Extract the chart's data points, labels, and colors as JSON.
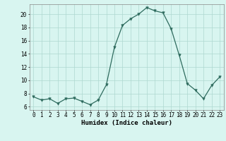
{
  "x": [
    0,
    1,
    2,
    3,
    4,
    5,
    6,
    7,
    8,
    9,
    10,
    11,
    12,
    13,
    14,
    15,
    16,
    17,
    18,
    19,
    20,
    21,
    22,
    23
  ],
  "y": [
    7.5,
    7.0,
    7.2,
    6.5,
    7.2,
    7.3,
    6.8,
    6.3,
    7.0,
    9.3,
    15.0,
    18.3,
    19.3,
    20.0,
    21.0,
    20.5,
    20.2,
    17.8,
    13.8,
    9.5,
    8.5,
    7.2,
    9.2,
    10.5
  ],
  "line_color": "#2e6b5e",
  "marker": "v",
  "marker_size": 2.5,
  "bg_color": "#d8f5f0",
  "grid_color": "#aed8d0",
  "xlabel": "Humidex (Indice chaleur)",
  "ylim": [
    5.5,
    21.5
  ],
  "xlim": [
    -0.5,
    23.5
  ],
  "yticks": [
    6,
    8,
    10,
    12,
    14,
    16,
    18,
    20
  ],
  "xticks": [
    0,
    1,
    2,
    3,
    4,
    5,
    6,
    7,
    8,
    9,
    10,
    11,
    12,
    13,
    14,
    15,
    16,
    17,
    18,
    19,
    20,
    21,
    22,
    23
  ],
  "tick_fontsize": 5.5,
  "xlabel_fontsize": 6.5
}
